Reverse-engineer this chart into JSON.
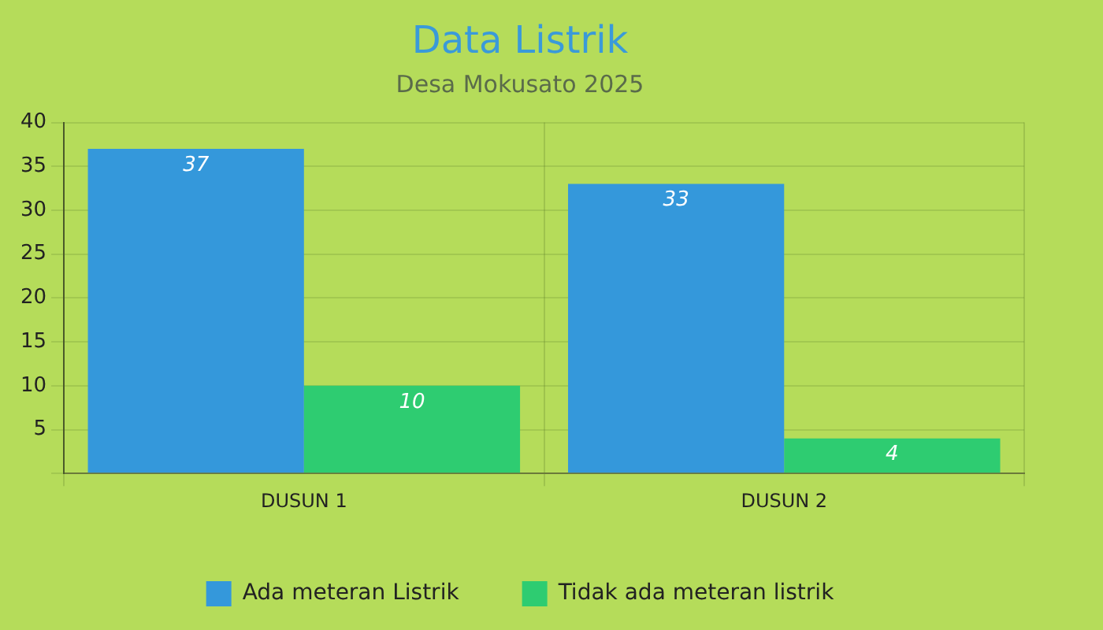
{
  "chart_data": {
    "type": "bar",
    "title": "Data Listrik",
    "subtitle": "Desa Mokusato 2025",
    "categories": [
      "DUSUN 1",
      "DUSUN 2"
    ],
    "series": [
      {
        "name": "Ada meteran Listrik",
        "color": "#3498db",
        "values": [
          37,
          33
        ]
      },
      {
        "name": "Tidak ada meteran listrik",
        "color": "#2ecc71",
        "values": [
          10,
          4
        ]
      }
    ],
    "ylim": [
      0,
      40
    ],
    "yticks": [
      {
        "value": 0,
        "label": null
      },
      5,
      10,
      15,
      20,
      25,
      30,
      35,
      40
    ],
    "grid": true,
    "legend": "bottom",
    "data_labels": true
  }
}
